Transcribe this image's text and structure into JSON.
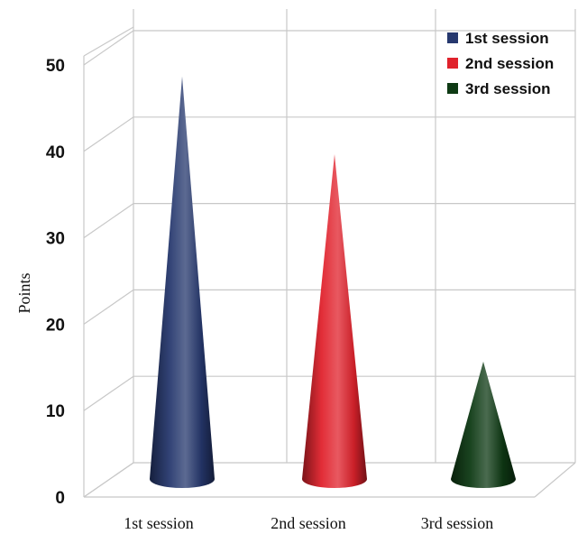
{
  "chart_data": {
    "type": "bar",
    "style": "3d-cone",
    "categories": [
      "1st session",
      "2nd session",
      "3rd session"
    ],
    "series": [
      {
        "name": "1st session",
        "values": [
          47,
          null,
          null
        ],
        "color": "#26386e"
      },
      {
        "name": "2nd session",
        "values": [
          null,
          38,
          null
        ],
        "color": "#e0222c"
      },
      {
        "name": "3rd session",
        "values": [
          null,
          null,
          14
        ],
        "color": "#0e3a14"
      }
    ],
    "title": "",
    "xlabel": "",
    "ylabel": "Points",
    "ylim": [
      0,
      50
    ],
    "yticks": [
      0,
      10,
      20,
      30,
      40,
      50
    ],
    "grid": true,
    "legend_position": "top-right"
  }
}
